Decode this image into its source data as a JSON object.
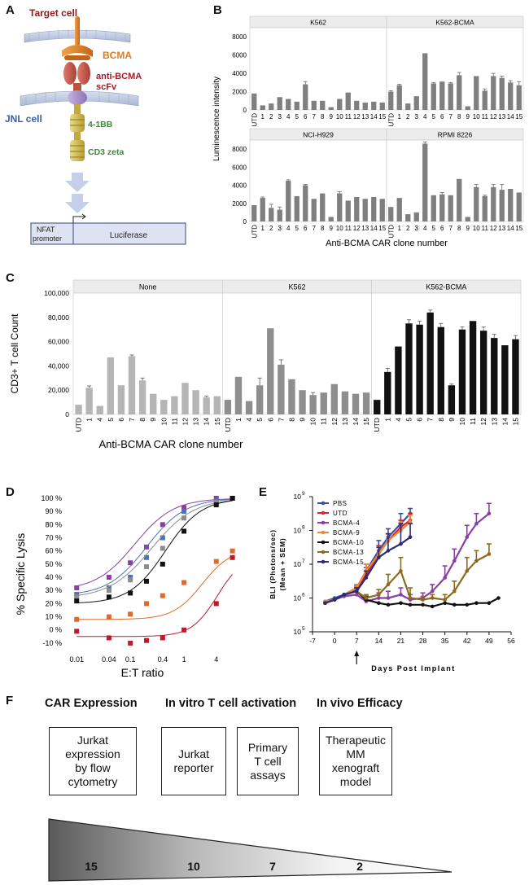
{
  "panels": {
    "a": "A",
    "b": "B",
    "c": "C",
    "d": "D",
    "e": "E",
    "f": "F"
  },
  "panel_a": {
    "target_cell": "Target cell",
    "bcma": "BCMA",
    "scfv_line1": "anti-BCMA",
    "scfv_line2": "scFv",
    "jnl_cell": "JNL cell",
    "costim": "4-1BB",
    "cd3": "CD3 zeta",
    "promoter_line1": "NFAT",
    "promoter_line2": "promoter",
    "reporter": "Luciferase",
    "colors": {
      "target": "#8b1a1a",
      "bcma": "#e07b1f",
      "scfv": "#a11c2b",
      "jnl": "#3b5ca8",
      "domain": "#3a8a3a"
    }
  },
  "chart_data": [
    {
      "id": "B",
      "type": "bar",
      "ylabel": "Luminescence intensity",
      "xlabel": "Anti-BCMA CAR clone number",
      "ylim": [
        0,
        9000
      ],
      "yticks": [
        0,
        2000,
        4000,
        6000,
        8000
      ],
      "categories": [
        "UTD",
        "1",
        "2",
        "3",
        "4",
        "5",
        "6",
        "7",
        "8",
        "9",
        "10",
        "11",
        "12",
        "13",
        "14",
        "15"
      ],
      "facets": [
        {
          "title": "K562",
          "values": [
            1800,
            500,
            700,
            1400,
            1200,
            900,
            2800,
            1000,
            1000,
            300,
            1200,
            1900,
            1000,
            800,
            900,
            800
          ],
          "errors": [
            0,
            0,
            0,
            0,
            0,
            0,
            300,
            0,
            0,
            0,
            0,
            0,
            0,
            0,
            0,
            0
          ]
        },
        {
          "title": "K562-BCMA",
          "values": [
            2000,
            2700,
            700,
            1500,
            6200,
            2900,
            3100,
            2900,
            3800,
            400,
            3700,
            2100,
            3700,
            3500,
            3000,
            2700
          ],
          "errors": [
            100,
            100,
            0,
            0,
            0,
            100,
            0,
            100,
            300,
            0,
            0,
            200,
            300,
            200,
            200,
            400
          ]
        },
        {
          "title": "NCI-H929",
          "values": [
            1800,
            2600,
            1500,
            1300,
            4500,
            2800,
            4000,
            2500,
            3100,
            500,
            3100,
            2300,
            2700,
            2500,
            2700,
            2500
          ],
          "errors": [
            0,
            100,
            400,
            300,
            100,
            0,
            100,
            0,
            0,
            0,
            200,
            0,
            0,
            0,
            0,
            0
          ]
        },
        {
          "title": "RPMI 8226",
          "values": [
            1600,
            2600,
            800,
            1000,
            8600,
            2900,
            3000,
            2900,
            4700,
            500,
            3800,
            2800,
            3800,
            3500,
            3600,
            3200
          ],
          "errors": [
            0,
            0,
            0,
            0,
            200,
            0,
            200,
            0,
            0,
            0,
            300,
            100,
            300,
            600,
            0,
            0
          ]
        }
      ]
    },
    {
      "id": "C",
      "type": "bar",
      "ylabel": "CD3+ T cell Count",
      "xlabel": "Anti-BCMA CAR clone number",
      "ylim": [
        0,
        100000
      ],
      "yticks": [
        0,
        20000,
        40000,
        60000,
        80000,
        100000
      ],
      "categories": [
        "UTD",
        "1",
        "4",
        "5",
        "6",
        "7",
        "8",
        "9",
        "10",
        "11",
        "12",
        "13",
        "14",
        "15"
      ],
      "facets": [
        {
          "title": "None",
          "color": "#b5b5b5",
          "values": [
            8000,
            22000,
            7000,
            47000,
            24000,
            48000,
            28000,
            17000,
            12000,
            15000,
            26000,
            20000,
            14000,
            15000
          ],
          "errors": [
            0,
            1500,
            0,
            0,
            0,
            1000,
            2000,
            0,
            0,
            0,
            0,
            0,
            1000,
            0
          ]
        },
        {
          "title": "K562",
          "color": "#8e8e8e",
          "values": [
            12000,
            31000,
            11000,
            24000,
            71000,
            41000,
            29000,
            20000,
            16000,
            18000,
            25000,
            19000,
            17000,
            18000
          ],
          "errors": [
            0,
            0,
            0,
            6000,
            0,
            4000,
            0,
            0,
            2000,
            0,
            0,
            0,
            0,
            0
          ]
        },
        {
          "title": "K562-BCMA",
          "color": "#111111",
          "values": [
            12000,
            35000,
            56000,
            75000,
            74000,
            84000,
            72000,
            24000,
            70000,
            77000,
            69000,
            63000,
            57000,
            62000
          ],
          "errors": [
            0,
            3000,
            0,
            3000,
            3000,
            2000,
            3000,
            1000,
            2000,
            0,
            3000,
            3000,
            0,
            3000
          ]
        }
      ]
    },
    {
      "id": "D",
      "type": "scatter",
      "ylabel": "% Specific Lysis",
      "xlabel": "E:T ratio",
      "xscale": "log",
      "xticks": [
        0.01,
        0.04,
        0.1,
        0.4,
        1,
        4
      ],
      "xtick_labels": [
        "0.01",
        "0.04",
        "0.1",
        "0.4",
        "1",
        "4"
      ],
      "yticks": [
        -10,
        0,
        10,
        20,
        30,
        40,
        50,
        60,
        70,
        80,
        90,
        100
      ],
      "ytick_labels": [
        "-10 %",
        "0 %",
        "10 %",
        "20 %",
        "30 %",
        "40 %",
        "50 %",
        "60 %",
        "70 %",
        "80 %",
        "90 %",
        "100 %"
      ],
      "ylim": [
        -15,
        100
      ],
      "x_points": [
        0.01,
        0.04,
        0.1,
        0.2,
        0.4,
        1,
        4,
        8
      ],
      "series": [
        {
          "name": "purple",
          "color": "#8b3fa6",
          "bottom": 30,
          "top": 100,
          "ec50": 0.12,
          "hill": 1.2,
          "points": [
            32,
            40,
            51,
            63,
            80,
            93,
            100,
            100
          ]
        },
        {
          "name": "blue",
          "color": "#4a73b5",
          "bottom": 26,
          "top": 100,
          "ec50": 0.2,
          "hill": 1.2,
          "points": [
            27,
            32,
            40,
            55,
            70,
            90,
            98,
            100
          ]
        },
        {
          "name": "grey",
          "color": "#8c8c8c",
          "bottom": 24,
          "top": 100,
          "ec50": 0.25,
          "hill": 1.1,
          "points": [
            25,
            30,
            38,
            48,
            62,
            85,
            97,
            100
          ]
        },
        {
          "name": "black",
          "color": "#111111",
          "bottom": 20,
          "top": 100,
          "ec50": 0.45,
          "hill": 1.3,
          "points": [
            22,
            25,
            28,
            37,
            50,
            75,
            95,
            100
          ]
        },
        {
          "name": "orange",
          "color": "#e06a2a",
          "bottom": 8,
          "top": 62,
          "ec50": 2.2,
          "hill": 1.6,
          "points": [
            8,
            10,
            12,
            20,
            26,
            36,
            52,
            60
          ]
        },
        {
          "name": "red",
          "color": "#c0192c",
          "bottom": -5,
          "top": 57,
          "ec50": 4.2,
          "hill": 1.8,
          "points": [
            -1,
            -6,
            -10,
            -8,
            -6,
            0,
            20,
            55
          ]
        }
      ]
    },
    {
      "id": "E",
      "type": "line",
      "ylabel_line1": "BLI (Photons/sec)",
      "ylabel_line2": "(Mean + SEM)",
      "xlabel": "Days Post Implant",
      "xlim": [
        -7,
        56
      ],
      "xticks": [
        -7,
        0,
        7,
        14,
        21,
        28,
        35,
        42,
        49,
        56
      ],
      "yscale": "log",
      "ylim_exp": [
        5,
        9
      ],
      "ytick_exps": [
        5,
        6,
        7,
        8,
        9
      ],
      "ytick_base": "10",
      "arrow_day": 7,
      "series": [
        {
          "name": "PBS",
          "color": "#3a4fa0",
          "x": [
            -3,
            0,
            3,
            7,
            10,
            14,
            17,
            21,
            24
          ],
          "y": [
            5.9,
            6.0,
            6.1,
            6.3,
            6.8,
            7.4,
            7.8,
            8.2,
            8.5
          ],
          "err": [
            0.05,
            0.05,
            0.05,
            0.1,
            0.2,
            0.3,
            0.25,
            0.3,
            0.15
          ]
        },
        {
          "name": "UTD",
          "color": "#d9232d",
          "x": [
            -3,
            0,
            3,
            7,
            10,
            14,
            17,
            21,
            24
          ],
          "y": [
            5.85,
            5.95,
            6.1,
            6.25,
            6.7,
            7.3,
            7.7,
            8.1,
            8.3
          ],
          "err": [
            0.05,
            0.05,
            0.05,
            0.1,
            0.2,
            0.25,
            0.2,
            0.2,
            0.2
          ]
        },
        {
          "name": "BCMA-4",
          "color": "#8b3fa6",
          "x": [
            -3,
            0,
            3,
            7,
            10,
            14,
            17,
            21,
            24,
            28,
            31,
            35,
            38,
            42,
            45,
            49
          ],
          "y": [
            5.85,
            5.95,
            6.05,
            6.1,
            5.9,
            6.0,
            6.0,
            6.1,
            5.95,
            6.0,
            6.2,
            6.6,
            7.1,
            7.8,
            8.2,
            8.5
          ],
          "err": [
            0.05,
            0.05,
            0.05,
            0.15,
            0.15,
            0.15,
            0.2,
            0.2,
            0.15,
            0.15,
            0.2,
            0.35,
            0.35,
            0.35,
            0.3,
            0.3
          ]
        },
        {
          "name": "BCMA-9",
          "color": "#e98a3a",
          "x": [
            -3,
            0,
            3,
            7,
            10,
            14,
            17,
            21,
            24
          ],
          "y": [
            5.9,
            5.95,
            6.1,
            6.3,
            6.8,
            7.3,
            7.7,
            8.0,
            8.25
          ],
          "err": [
            0.05,
            0.05,
            0.05,
            0.1,
            0.2,
            0.2,
            0.2,
            0.25,
            0.2
          ]
        },
        {
          "name": "BCMA-10",
          "color": "#111111",
          "x": [
            -3,
            0,
            3,
            7,
            10,
            14,
            17,
            21,
            24,
            28,
            31,
            35,
            38,
            42,
            45,
            49,
            52
          ],
          "y": [
            5.85,
            5.95,
            6.1,
            6.2,
            5.95,
            5.85,
            5.8,
            5.85,
            5.8,
            5.8,
            5.75,
            5.85,
            5.8,
            5.8,
            5.85,
            5.85,
            6.0
          ],
          "err": [
            0.05,
            0.05,
            0.05,
            0.1,
            0.1,
            0.05,
            0.05,
            0.05,
            0.05,
            0.05,
            0.05,
            0.05,
            0.05,
            0.05,
            0.05,
            0.05,
            0.05
          ]
        },
        {
          "name": "BCMA-13",
          "color": "#8a6b1f",
          "x": [
            -3,
            0,
            3,
            7,
            10,
            14,
            17,
            21,
            24,
            28,
            31,
            35,
            38,
            42,
            45,
            49
          ],
          "y": [
            5.85,
            5.95,
            6.1,
            6.2,
            6.0,
            6.1,
            6.4,
            6.8,
            6.0,
            5.95,
            6.0,
            5.95,
            6.2,
            6.8,
            7.1,
            7.3
          ],
          "err": [
            0.05,
            0.05,
            0.05,
            0.1,
            0.1,
            0.15,
            0.3,
            0.4,
            0.3,
            0.1,
            0.1,
            0.15,
            0.3,
            0.4,
            0.3,
            0.3
          ]
        },
        {
          "name": "BCMA-15",
          "color": "#2a2a78",
          "x": [
            -3,
            0,
            3,
            7,
            10,
            14,
            17,
            21,
            24
          ],
          "y": [
            5.85,
            5.95,
            6.1,
            6.2,
            6.6,
            7.2,
            7.4,
            7.6,
            7.8
          ],
          "err": [
            0.05,
            0.05,
            0.05,
            0.1,
            0.2,
            0.3,
            0.5,
            0.6,
            0.4
          ]
        }
      ]
    }
  ],
  "panel_f": {
    "headers": [
      "CAR Expression",
      "In vitro T cell activation",
      "In vivo Efficacy"
    ],
    "boxes": [
      [
        "Jurkat",
        "expression",
        "by flow",
        "cytometry"
      ],
      [
        "Jurkat",
        "reporter"
      ],
      [
        "Primary",
        "T cell",
        "assays"
      ],
      [
        "Therapeutic",
        "MM",
        "xenograft",
        "model"
      ]
    ],
    "funnel_numbers": [
      "15",
      "10",
      "7",
      "2"
    ]
  }
}
